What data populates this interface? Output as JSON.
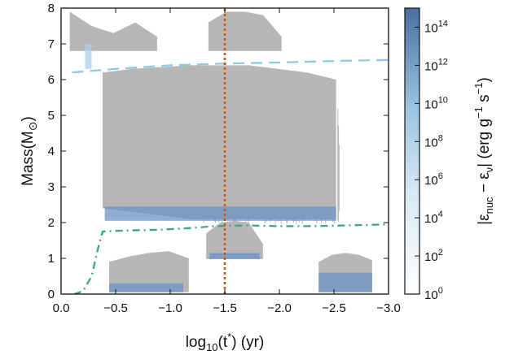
{
  "chart_data": {
    "type": "heatmap",
    "title": "",
    "xlabel_parts": {
      "base": "log",
      "sub": "10",
      "mid": "(t",
      "sup": "*",
      "end": ") (yr)"
    },
    "ylabel_parts": {
      "base": "Mass(M",
      "sub": "⊙",
      "end": ")"
    },
    "xlim": [
      0.0,
      -3.0
    ],
    "ylim": [
      0,
      8
    ],
    "x_ticks": [
      {
        "value": 0.0,
        "label": "0.0"
      },
      {
        "value": -0.5,
        "label": "−0.5"
      },
      {
        "value": -1.0,
        "label": "−1.0"
      },
      {
        "value": -1.5,
        "label": "−1.5"
      },
      {
        "value": -2.0,
        "label": "−2.0"
      },
      {
        "value": -2.5,
        "label": "−2.5"
      },
      {
        "value": -3.0,
        "label": "−3.0"
      }
    ],
    "y_ticks": [
      {
        "value": 0,
        "label": "0"
      },
      {
        "value": 1,
        "label": "1"
      },
      {
        "value": 2,
        "label": "2"
      },
      {
        "value": 3,
        "label": "3"
      },
      {
        "value": 4,
        "label": "4"
      },
      {
        "value": 5,
        "label": "5"
      },
      {
        "value": 6,
        "label": "6"
      },
      {
        "value": 7,
        "label": "7"
      },
      {
        "value": 8,
        "label": "8"
      }
    ],
    "grid": false,
    "colorbar": {
      "label_parts": {
        "a": "|ε",
        "a_sub": "nuc",
        "b": " − ε",
        "b_sub": "ν",
        "c": "| (erg g",
        "c_sup": "−1",
        "d": " s",
        "d_sup": "−1",
        "e": ")"
      },
      "scale": "log",
      "range_exponent": [
        0,
        15
      ],
      "ticks": [
        {
          "exp": 0,
          "base": "10",
          "sup": "0"
        },
        {
          "exp": 2,
          "base": "10",
          "sup": "2"
        },
        {
          "exp": 4,
          "base": "10",
          "sup": "4"
        },
        {
          "exp": 6,
          "base": "10",
          "sup": "6"
        },
        {
          "exp": 8,
          "base": "10",
          "sup": "8"
        },
        {
          "exp": 10,
          "base": "10",
          "sup": "10"
        },
        {
          "exp": 12,
          "base": "10",
          "sup": "12"
        },
        {
          "exp": 14,
          "base": "10",
          "sup": "14"
        }
      ],
      "color_low": "#ffffff",
      "color_high": "#4a6fa0"
    },
    "colors": {
      "convective_zone": "#b9b6b8",
      "burning_low": "#a9d2e8",
      "burning_high": "#6b93c2",
      "total_mass_line": "#8ecae6",
      "core_boundary_line": "#3aa58a",
      "marker_line": "#d3560a"
    },
    "lines": [
      {
        "name_hidden": "total mass",
        "style": "dashed",
        "points": [
          [
            0.1,
            6.2
          ],
          [
            0.5,
            6.3
          ],
          [
            1.0,
            6.4
          ],
          [
            1.5,
            6.45
          ],
          [
            2.0,
            6.48
          ],
          [
            2.5,
            6.52
          ],
          [
            3.0,
            6.55
          ]
        ]
      },
      {
        "name_hidden": "core boundary",
        "style": "dashdot",
        "points": [
          [
            0.12,
            0.0
          ],
          [
            0.2,
            0.08
          ],
          [
            0.28,
            0.5
          ],
          [
            0.34,
            1.3
          ],
          [
            0.38,
            1.75
          ],
          [
            0.6,
            1.78
          ],
          [
            0.9,
            1.8
          ],
          [
            1.2,
            1.85
          ],
          [
            1.4,
            1.9
          ],
          [
            1.7,
            1.92
          ],
          [
            2.0,
            1.9
          ],
          [
            2.3,
            1.9
          ],
          [
            2.6,
            1.92
          ],
          [
            3.0,
            1.95
          ]
        ]
      },
      {
        "name_hidden": "marker",
        "style": "dotted",
        "points": [
          [
            1.5,
            0.0
          ],
          [
            1.5,
            8.0
          ]
        ]
      }
    ],
    "regions": [
      {
        "kind": "convective",
        "x": [
          0.38,
          2.52
        ],
        "y_bottom": [
          2.4,
          2.3,
          2.2,
          2.1,
          2.1,
          2.1,
          2.1,
          2.1,
          2.1
        ],
        "y_top": [
          6.2,
          6.3,
          6.35,
          6.4,
          6.4,
          6.4,
          6.3,
          6.2,
          6.0
        ]
      },
      {
        "kind": "convective",
        "x": [
          0.44,
          1.17
        ],
        "y_bottom": [
          0.05,
          0.05,
          0.05,
          0.05,
          0.05
        ],
        "y_top": [
          0.9,
          1.05,
          1.15,
          1.2,
          1.0
        ]
      },
      {
        "kind": "convective",
        "x": [
          1.33,
          1.85
        ],
        "y_bottom": [
          0.98,
          0.98,
          0.98,
          0.98,
          0.98
        ],
        "y_top": [
          1.7,
          2.0,
          2.05,
          2.0,
          1.4
        ]
      },
      {
        "kind": "convective",
        "x": [
          2.36,
          2.85
        ],
        "y_bottom": [
          0.05,
          0.05,
          0.05,
          0.05,
          0.05
        ],
        "y_top": [
          0.9,
          1.1,
          1.15,
          1.1,
          0.95
        ]
      },
      {
        "kind": "convective",
        "x": [
          0.08,
          0.88
        ],
        "y_bottom": [
          6.8,
          6.8,
          6.8,
          6.8,
          6.8
        ],
        "y_top": [
          7.9,
          7.5,
          7.3,
          7.6,
          7.2
        ]
      },
      {
        "kind": "convective",
        "x": [
          1.35,
          2.02
        ],
        "y_bottom": [
          6.8,
          6.8,
          6.8,
          6.8,
          6.8
        ],
        "y_top": [
          7.6,
          7.9,
          7.9,
          7.8,
          7.2
        ]
      }
    ],
    "burning_bands": [
      {
        "x": [
          0.4,
          2.52
        ],
        "y": [
          2.05,
          2.45
        ],
        "level": "high"
      },
      {
        "x": [
          1.36,
          1.82
        ],
        "y": [
          0.98,
          1.15
        ],
        "level": "high"
      },
      {
        "x": [
          0.44,
          1.12
        ],
        "y": [
          0.05,
          0.3
        ],
        "level": "high"
      },
      {
        "x": [
          2.36,
          2.85
        ],
        "y": [
          0.05,
          0.6
        ],
        "level": "high"
      },
      {
        "x": [
          0.22,
          0.28
        ],
        "y": [
          6.3,
          7.0
        ],
        "level": "low"
      }
    ]
  }
}
